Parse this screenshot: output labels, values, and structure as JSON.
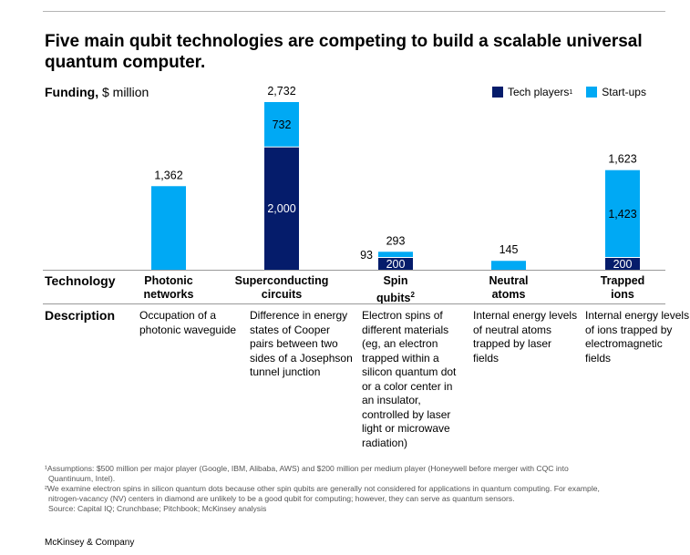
{
  "title": "Five main qubit technologies are competing to build a scalable universal quantum computer.",
  "funding_label_bold": "Funding,",
  "funding_label_rest": " $ million",
  "legend": {
    "tech": "Tech players",
    "tech_sup": "1",
    "startups": "Start-ups"
  },
  "colors": {
    "tech": "#051c6b",
    "startups": "#00a9f4"
  },
  "row_labels": {
    "technology": "Technology",
    "description": "Description"
  },
  "categories": [
    {
      "line1": "Photonic",
      "line2": "networks",
      "sup": ""
    },
    {
      "line1": "Superconducting",
      "line2": "circuits",
      "sup": ""
    },
    {
      "line1": "Spin",
      "line2": "qubits",
      "sup": "2"
    },
    {
      "line1": "Neutral",
      "line2": "atoms",
      "sup": ""
    },
    {
      "line1": "Trapped",
      "line2": "ions",
      "sup": ""
    }
  ],
  "descriptions": [
    "Occupation of a photonic waveguide",
    "Difference in energy states of Cooper pairs between two sides of a Josephson tunnel junction",
    "Electron spins of different materials (eg, an electron trapped within a silicon quantum dot or a color center in an insulator, controlled by laser light or microwave radiation)",
    "Internal energy levels of neutral atoms trapped by laser fields",
    "Internal energy levels of ions trapped by electromagnetic fields"
  ],
  "chart_data": {
    "type": "bar",
    "stacked": true,
    "title": "Five main qubit technologies are competing to build a scalable universal quantum computer.",
    "ylabel": "Funding, $ million",
    "categories": [
      "Photonic networks",
      "Superconducting circuits",
      "Spin qubits",
      "Neutral atoms",
      "Trapped ions"
    ],
    "series": [
      {
        "name": "Tech players",
        "values": [
          0,
          2000,
          200,
          0,
          200
        ]
      },
      {
        "name": "Start-ups",
        "values": [
          1362,
          732,
          93,
          145,
          1423
        ]
      }
    ],
    "totals": [
      1362,
      2732,
      293,
      145,
      1623
    ],
    "total_labels": [
      "1,362",
      "2,732",
      "293",
      "145",
      "1,623"
    ],
    "segment_labels": {
      "tech": [
        "",
        "2,000",
        "200",
        "",
        "200"
      ],
      "startups": [
        "",
        "732",
        "93",
        "",
        "1,423"
      ]
    },
    "ylim": [
      0,
      2732
    ]
  },
  "footnotes": [
    "¹Assumptions: $500 million per major player (Google, IBM, Alibaba, AWS) and $200 million per medium player (Honeywell before merger with CQC into",
    "Quantinuum, Intel).",
    "²We examine electron spins in silicon quantum dots because other spin qubits are generally not considered for applications in quantum computing. For example,",
    "nitrogen-vacancy (NV) centers in diamond are unlikely to be a good qubit for computing; however, they can serve as quantum sensors.",
    "Source: Capital IQ; Crunchbase; Pitchbook; McKinsey analysis"
  ],
  "brand": "McKinsey & Company"
}
